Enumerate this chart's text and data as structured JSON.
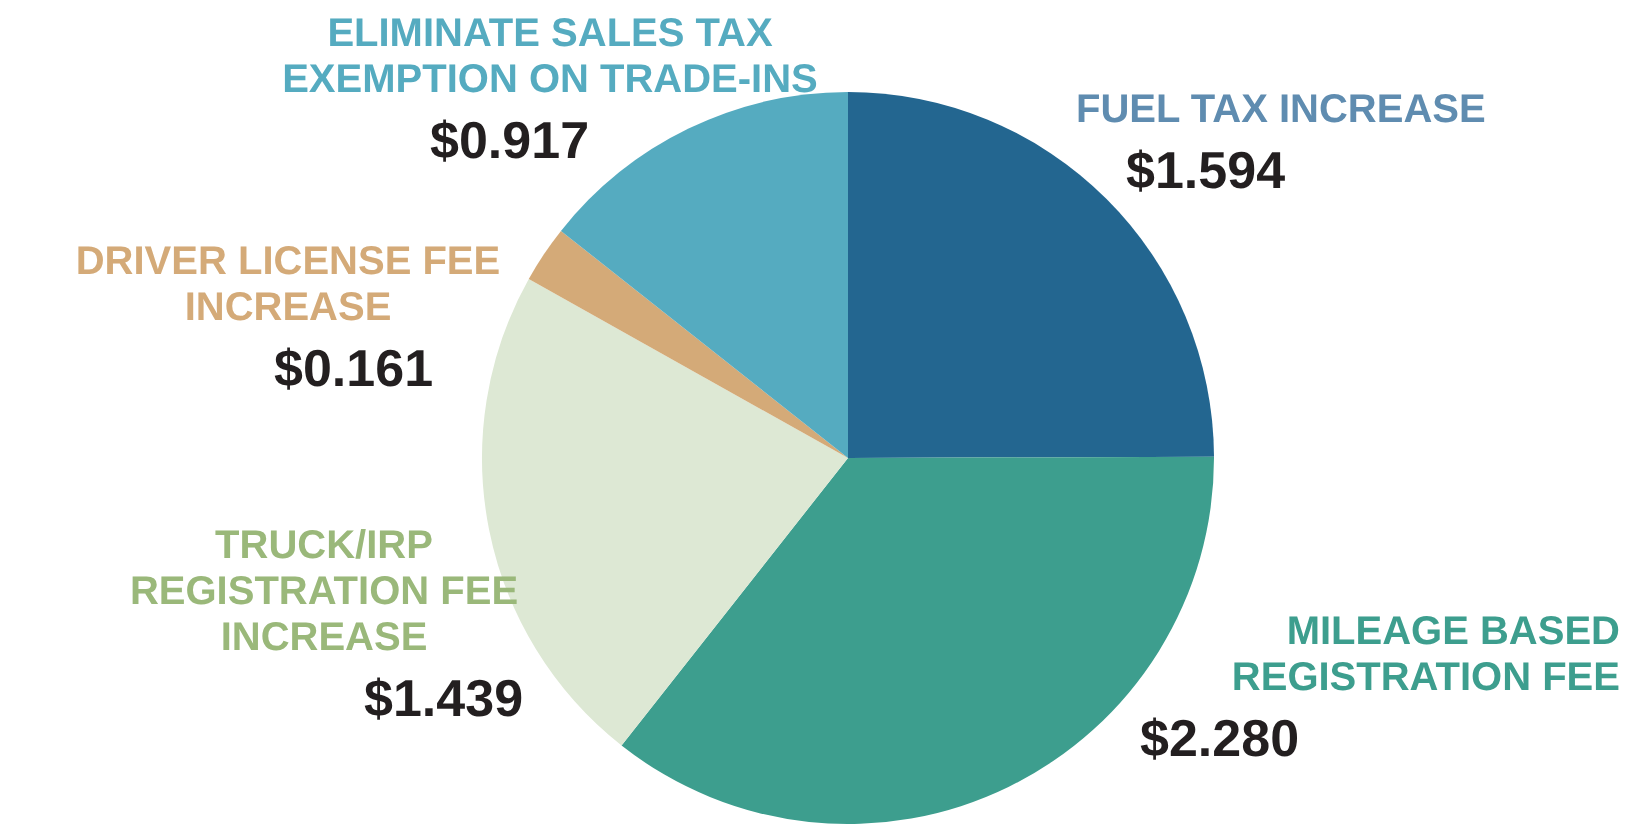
{
  "chart_data": {
    "type": "pie",
    "categories": [
      "FUEL TAX INCREASE",
      "MILEAGE BASED REGISTRATION FEE",
      "TRUCK/IRP REGISTRATION FEE INCREASE",
      "DRIVER LICENSE FEE INCREASE",
      "ELIMINATE SALES TAX EXEMPTION ON TRADE-INS"
    ],
    "values": [
      1.594,
      2.28,
      1.439,
      0.161,
      0.917
    ],
    "value_labels": [
      "$1.594",
      "$2.280",
      "$1.439",
      "$0.161",
      "$0.917"
    ],
    "colors": [
      "#236690",
      "#3d9e8e",
      "#dde8d4",
      "#d4aa78",
      "#55abc0"
    ],
    "legend": false
  }
}
